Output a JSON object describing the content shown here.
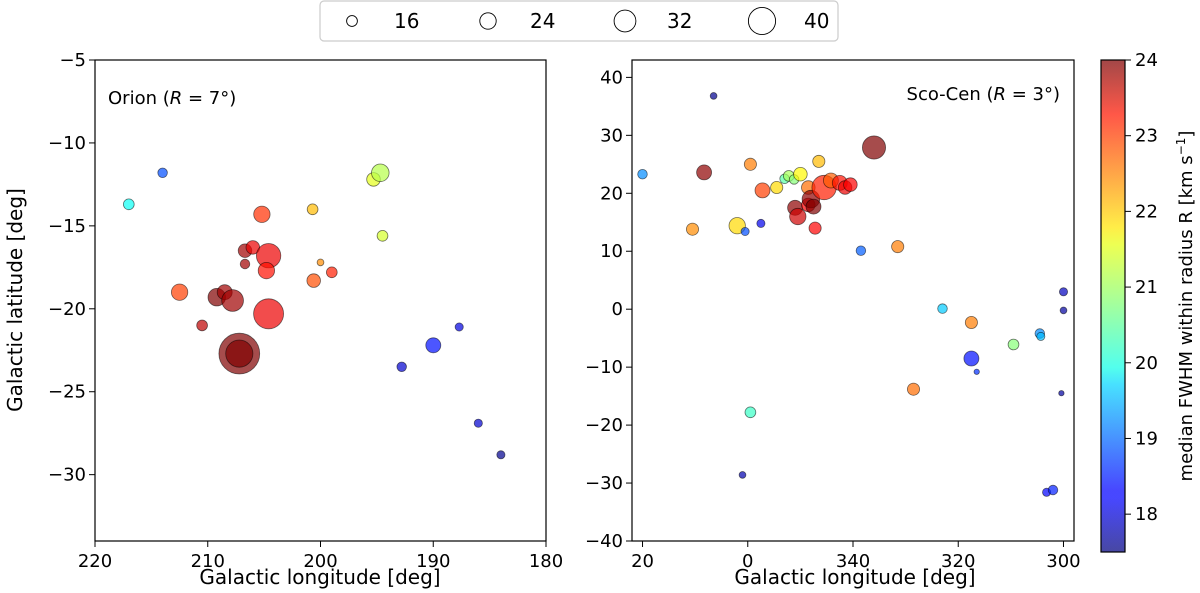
{
  "legend": {
    "title": "",
    "entries": [
      {
        "label": "16",
        "size": 16
      },
      {
        "label": "24",
        "size": 24
      },
      {
        "label": "32",
        "size": 32
      },
      {
        "label": "40",
        "size": 40
      }
    ]
  },
  "colorbar": {
    "label": "median FWHM within radius $R$ [km s$^{-1}$]",
    "label_plain": "median FWHM within radius R [km s",
    "label_sup": "−1",
    "label_close": "]",
    "vmin": 17.5,
    "vmax": 24,
    "ticks": [
      "18",
      "19",
      "20",
      "21",
      "22",
      "23",
      "24"
    ],
    "colormap": "jet",
    "alpha": 0.7
  },
  "chart_data": [
    {
      "type": "scatter",
      "title": "Orion (R = 7°)",
      "title_prefix": "Orion (",
      "title_var": "R",
      "title_suffix": " = 7°)",
      "xlabel": "Galactic longitude [deg]",
      "ylabel": "Galactic latitude [deg]",
      "xlim": [
        220,
        180
      ],
      "ylim": [
        -34,
        -5
      ],
      "xticks": [
        220,
        210,
        200,
        190,
        180
      ],
      "xtick_labels": [
        "220",
        "210",
        "200",
        "190",
        "180"
      ],
      "yticks": [
        -30,
        -25,
        -20,
        -15,
        -10,
        -5
      ],
      "ytick_labels": [
        "−30",
        "−25",
        "−20",
        "−15",
        "−10",
        "−5"
      ],
      "points": [
        {
          "x": 217.0,
          "y": -13.7,
          "size": 16,
          "color_value": 20.0
        },
        {
          "x": 214.0,
          "y": -11.8,
          "size": 14,
          "color_value": 18.8
        },
        {
          "x": 212.5,
          "y": -19.0,
          "size": 24,
          "color_value": 22.8
        },
        {
          "x": 210.5,
          "y": -21.0,
          "size": 16,
          "color_value": 23.6
        },
        {
          "x": 209.2,
          "y": -19.3,
          "size": 26,
          "color_value": 24.0
        },
        {
          "x": 208.5,
          "y": -19.0,
          "size": 22,
          "color_value": 23.8
        },
        {
          "x": 207.8,
          "y": -19.5,
          "size": 32,
          "color_value": 23.8
        },
        {
          "x": 207.2,
          "y": -22.7,
          "size": 60,
          "color_value": 24.0
        },
        {
          "x": 207.2,
          "y": -22.7,
          "size": 40,
          "color_value": 24.0
        },
        {
          "x": 206.7,
          "y": -16.5,
          "size": 20,
          "color_value": 23.8
        },
        {
          "x": 206.7,
          "y": -17.3,
          "size": 14,
          "color_value": 23.8
        },
        {
          "x": 206.0,
          "y": -16.3,
          "size": 20,
          "color_value": 23.3
        },
        {
          "x": 205.2,
          "y": -14.3,
          "size": 24,
          "color_value": 22.9
        },
        {
          "x": 204.6,
          "y": -16.8,
          "size": 36,
          "color_value": 23.3
        },
        {
          "x": 204.8,
          "y": -17.7,
          "size": 24,
          "color_value": 23.1
        },
        {
          "x": 204.6,
          "y": -20.3,
          "size": 44,
          "color_value": 23.3
        },
        {
          "x": 200.7,
          "y": -14.0,
          "size": 16,
          "color_value": 22.0
        },
        {
          "x": 200.0,
          "y": -17.2,
          "size": 10,
          "color_value": 22.3
        },
        {
          "x": 200.6,
          "y": -18.3,
          "size": 20,
          "color_value": 22.7
        },
        {
          "x": 199.0,
          "y": -17.8,
          "size": 16,
          "color_value": 23.0
        },
        {
          "x": 195.3,
          "y": -12.2,
          "size": 20,
          "color_value": 21.4
        },
        {
          "x": 194.7,
          "y": -11.8,
          "size": 26,
          "color_value": 21.1
        },
        {
          "x": 194.5,
          "y": -15.6,
          "size": 16,
          "color_value": 21.3
        },
        {
          "x": 190.0,
          "y": -22.2,
          "size": 22,
          "color_value": 18.4
        },
        {
          "x": 192.8,
          "y": -23.5,
          "size": 14,
          "color_value": 18.0
        },
        {
          "x": 187.7,
          "y": -21.1,
          "size": 12,
          "color_value": 18.1
        },
        {
          "x": 186.0,
          "y": -26.9,
          "size": 12,
          "color_value": 18.0
        },
        {
          "x": 184.0,
          "y": -28.8,
          "size": 12,
          "color_value": 17.6
        }
      ]
    },
    {
      "type": "scatter",
      "title": "Sco-Cen (R = 3°)",
      "title_prefix": "Sco-Cen (",
      "title_var": "R",
      "title_suffix": " = 3°)",
      "xlabel": "Galactic longitude [deg]",
      "ylabel": "",
      "xlim": [
        22,
        -62
      ],
      "ylim": [
        -40,
        43
      ],
      "xticks": [
        20,
        0,
        -20,
        -40,
        -60
      ],
      "xtick_labels": [
        "20",
        "0",
        "340",
        "320",
        "300"
      ],
      "yticks": [
        -40,
        -30,
        -20,
        -10,
        0,
        10,
        20,
        30,
        40
      ],
      "ytick_labels": [
        "−40",
        "−30",
        "−20",
        "−10",
        "0",
        "10",
        "20",
        "30",
        "40"
      ],
      "points": [
        {
          "x": 20.0,
          "y": 23.3,
          "size": 14,
          "color_value": 19.2
        },
        {
          "x": 6.5,
          "y": 36.8,
          "size": 10,
          "color_value": 17.6
        },
        {
          "x": 8.3,
          "y": 23.6,
          "size": 22,
          "color_value": 23.9
        },
        {
          "x": 10.5,
          "y": 13.8,
          "size": 18,
          "color_value": 22.3
        },
        {
          "x": 2.0,
          "y": 14.4,
          "size": 24,
          "color_value": 21.8
        },
        {
          "x": -0.5,
          "y": 25.0,
          "size": 18,
          "color_value": 22.4
        },
        {
          "x": 0.5,
          "y": 13.4,
          "size": 12,
          "color_value": 18.8
        },
        {
          "x": -2.5,
          "y": 14.8,
          "size": 12,
          "color_value": 18.2
        },
        {
          "x": -2.8,
          "y": 20.5,
          "size": 22,
          "color_value": 22.8
        },
        {
          "x": -5.5,
          "y": 21.0,
          "size": 18,
          "color_value": 21.8
        },
        {
          "x": -7.0,
          "y": 22.5,
          "size": 14,
          "color_value": 20.5
        },
        {
          "x": -7.8,
          "y": 23.0,
          "size": 16,
          "color_value": 21.0
        },
        {
          "x": -8.8,
          "y": 22.4,
          "size": 14,
          "color_value": 20.8
        },
        {
          "x": -10.0,
          "y": 23.3,
          "size": 20,
          "color_value": 21.6
        },
        {
          "x": -11.5,
          "y": 21.0,
          "size": 20,
          "color_value": 22.5
        },
        {
          "x": -9.0,
          "y": 17.5,
          "size": 22,
          "color_value": 23.9
        },
        {
          "x": -9.5,
          "y": 16.0,
          "size": 24,
          "color_value": 23.5
        },
        {
          "x": -11.5,
          "y": 18.0,
          "size": 20,
          "color_value": 23.2
        },
        {
          "x": -12.0,
          "y": 19.0,
          "size": 26,
          "color_value": 23.9
        },
        {
          "x": -12.5,
          "y": 17.7,
          "size": 22,
          "color_value": 24.0
        },
        {
          "x": -12.8,
          "y": 14.0,
          "size": 18,
          "color_value": 23.2
        },
        {
          "x": -13.5,
          "y": 25.5,
          "size": 18,
          "color_value": 22.0
        },
        {
          "x": -14.5,
          "y": 21.0,
          "size": 36,
          "color_value": 23.0
        },
        {
          "x": -15.8,
          "y": 22.2,
          "size": 22,
          "color_value": 22.6
        },
        {
          "x": -17.5,
          "y": 21.8,
          "size": 22,
          "color_value": 23.1
        },
        {
          "x": -18.5,
          "y": 21.0,
          "size": 20,
          "color_value": 23.3
        },
        {
          "x": -19.5,
          "y": 21.5,
          "size": 20,
          "color_value": 23.2
        },
        {
          "x": -24.0,
          "y": 27.9,
          "size": 34,
          "color_value": 24.0
        },
        {
          "x": -21.5,
          "y": 10.1,
          "size": 14,
          "color_value": 18.9
        },
        {
          "x": -28.5,
          "y": 10.8,
          "size": 18,
          "color_value": 22.4
        },
        {
          "x": -37.0,
          "y": 0.1,
          "size": 14,
          "color_value": 19.6
        },
        {
          "x": -42.5,
          "y": -2.3,
          "size": 18,
          "color_value": 22.4
        },
        {
          "x": -42.5,
          "y": -8.5,
          "size": 22,
          "color_value": 18.4
        },
        {
          "x": -43.5,
          "y": -10.8,
          "size": 8,
          "color_value": 18.6
        },
        {
          "x": -31.5,
          "y": -13.8,
          "size": 18,
          "color_value": 22.5
        },
        {
          "x": -0.5,
          "y": -17.8,
          "size": 16,
          "color_value": 20.3
        },
        {
          "x": 1.0,
          "y": -28.6,
          "size": 10,
          "color_value": 17.8
        },
        {
          "x": -50.5,
          "y": -6.1,
          "size": 16,
          "color_value": 20.8
        },
        {
          "x": -55.5,
          "y": -4.2,
          "size": 14,
          "color_value": 19.2
        },
        {
          "x": -55.7,
          "y": -4.7,
          "size": 12,
          "color_value": 19.5
        },
        {
          "x": -56.8,
          "y": -31.6,
          "size": 12,
          "color_value": 18.3
        },
        {
          "x": -58.0,
          "y": -31.2,
          "size": 14,
          "color_value": 18.5
        },
        {
          "x": -60.0,
          "y": 3.0,
          "size": 12,
          "color_value": 17.9
        },
        {
          "x": -60.0,
          "y": -0.2,
          "size": 10,
          "color_value": 17.7
        },
        {
          "x": -59.6,
          "y": -14.5,
          "size": 8,
          "color_value": 17.7
        }
      ]
    }
  ]
}
